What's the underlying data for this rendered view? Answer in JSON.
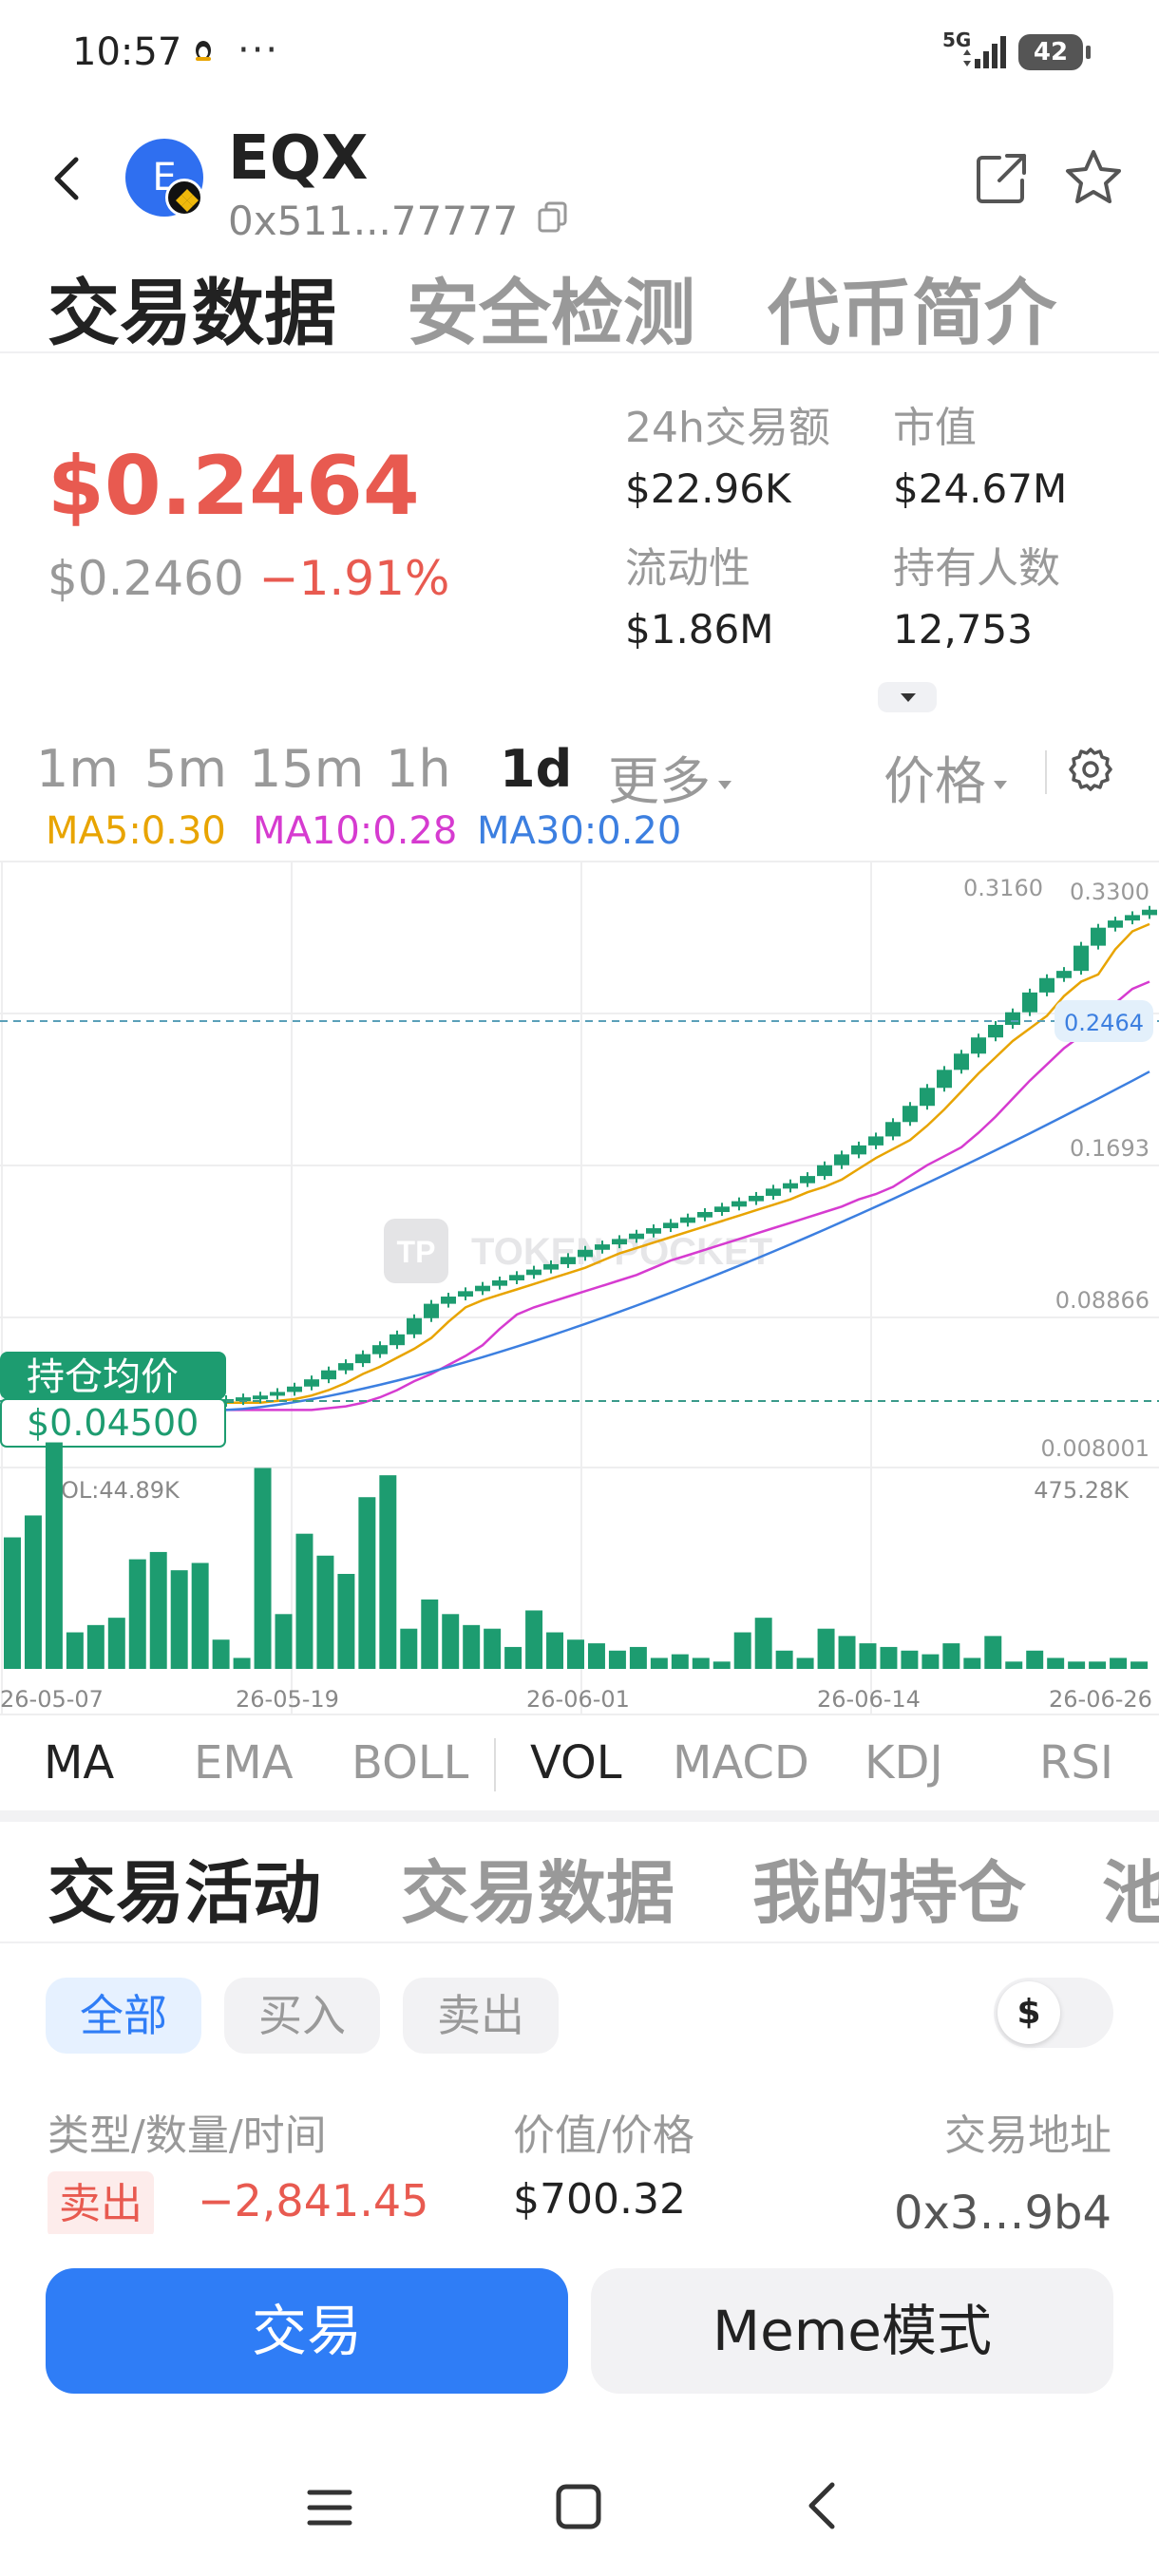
{
  "status_bar": {
    "time": "10:57",
    "more": "···",
    "network": "5G",
    "battery": "42"
  },
  "header": {
    "avatar_letter": "E",
    "symbol": "EQX",
    "address": "0x511...77777"
  },
  "top_tabs": [
    "交易数据",
    "安全检测",
    "代币简介"
  ],
  "price": {
    "main": "$0.2464",
    "secondary": "$0.2460",
    "change": "−1.91%"
  },
  "stats": {
    "volume_label": "24h交易额",
    "volume_value": "$22.96K",
    "mcap_label": "市值",
    "mcap_value": "$24.67M",
    "liquidity_label": "流动性",
    "liquidity_value": "$1.86M",
    "holders_label": "持有人数",
    "holders_value": "12,753"
  },
  "intervals": [
    "1m",
    "5m",
    "15m",
    "1h",
    "1d",
    "更多"
  ],
  "price_selector": "价格",
  "ma_legend": {
    "ma5": "MA5:0.30",
    "ma10": "MA10:0.28",
    "ma30": "MA30:0.20",
    "ma5_color": "#e8a400",
    "ma10_color": "#d63bd0",
    "ma30_color": "#3c7fe0"
  },
  "chart_data": {
    "type": "candlestick",
    "y_axis_labels": [
      "0.3160",
      "0.3300",
      "0.2464",
      "0.1693",
      "0.08866",
      "0.008001"
    ],
    "current_price_label": "0.2464",
    "avg_cost_label": "持仓均价",
    "avg_cost_value": "$0.04500",
    "watermark": "TOKEN POCKET",
    "watermark_logo": "TP",
    "volume_max_label": "475.28K",
    "volume_label": "VOL:44.89K",
    "x_labels": [
      "26-05-07",
      "26-05-19",
      "26-06-01",
      "26-06-14",
      "26-06-26"
    ],
    "ylim": [
      0.008001,
      0.33
    ],
    "candles": [
      {
        "o": 0.045,
        "c": 0.046
      },
      {
        "o": 0.046,
        "c": 0.047
      },
      {
        "o": 0.047,
        "c": 0.048
      },
      {
        "o": 0.048,
        "c": 0.05
      },
      {
        "o": 0.05,
        "c": 0.053
      },
      {
        "o": 0.053,
        "c": 0.057
      },
      {
        "o": 0.057,
        "c": 0.062
      },
      {
        "o": 0.062,
        "c": 0.066
      },
      {
        "o": 0.066,
        "c": 0.071
      },
      {
        "o": 0.071,
        "c": 0.076
      },
      {
        "o": 0.076,
        "c": 0.082
      },
      {
        "o": 0.082,
        "c": 0.091
      },
      {
        "o": 0.091,
        "c": 0.099
      },
      {
        "o": 0.099,
        "c": 0.103
      },
      {
        "o": 0.103,
        "c": 0.106
      },
      {
        "o": 0.106,
        "c": 0.109
      },
      {
        "o": 0.109,
        "c": 0.112
      },
      {
        "o": 0.112,
        "c": 0.115
      },
      {
        "o": 0.115,
        "c": 0.118
      },
      {
        "o": 0.118,
        "c": 0.121
      },
      {
        "o": 0.121,
        "c": 0.125
      },
      {
        "o": 0.125,
        "c": 0.129
      },
      {
        "o": 0.129,
        "c": 0.132
      },
      {
        "o": 0.132,
        "c": 0.135
      },
      {
        "o": 0.135,
        "c": 0.138
      },
      {
        "o": 0.138,
        "c": 0.141
      },
      {
        "o": 0.141,
        "c": 0.144
      },
      {
        "o": 0.144,
        "c": 0.147
      },
      {
        "o": 0.147,
        "c": 0.15
      },
      {
        "o": 0.15,
        "c": 0.153
      },
      {
        "o": 0.153,
        "c": 0.156
      },
      {
        "o": 0.156,
        "c": 0.159
      },
      {
        "o": 0.159,
        "c": 0.163
      },
      {
        "o": 0.163,
        "c": 0.166
      },
      {
        "o": 0.166,
        "c": 0.17
      },
      {
        "o": 0.17,
        "c": 0.176
      },
      {
        "o": 0.176,
        "c": 0.182
      },
      {
        "o": 0.182,
        "c": 0.187
      },
      {
        "o": 0.187,
        "c": 0.192
      },
      {
        "o": 0.192,
        "c": 0.2
      },
      {
        "o": 0.2,
        "c": 0.209
      },
      {
        "o": 0.209,
        "c": 0.219
      },
      {
        "o": 0.219,
        "c": 0.229
      },
      {
        "o": 0.229,
        "c": 0.238
      },
      {
        "o": 0.238,
        "c": 0.247
      },
      {
        "o": 0.247,
        "c": 0.254
      },
      {
        "o": 0.254,
        "c": 0.261
      },
      {
        "o": 0.261,
        "c": 0.272
      },
      {
        "o": 0.272,
        "c": 0.28
      },
      {
        "o": 0.28,
        "c": 0.284
      },
      {
        "o": 0.284,
        "c": 0.298
      },
      {
        "o": 0.298,
        "c": 0.308
      },
      {
        "o": 0.308,
        "c": 0.312
      },
      {
        "o": 0.312,
        "c": 0.315
      },
      {
        "o": 0.315,
        "c": 0.318
      }
    ],
    "volumes": [
      0.36,
      0.42,
      0.62,
      0.1,
      0.12,
      0.14,
      0.3,
      0.32,
      0.27,
      0.29,
      0.08,
      0.03,
      0.55,
      0.15,
      0.37,
      0.31,
      0.26,
      0.47,
      0.53,
      0.11,
      0.19,
      0.15,
      0.12,
      0.11,
      0.06,
      0.16,
      0.1,
      0.08,
      0.07,
      0.05,
      0.06,
      0.03,
      0.04,
      0.03,
      0.02,
      0.1,
      0.14,
      0.05,
      0.03,
      0.11,
      0.09,
      0.07,
      0.06,
      0.05,
      0.04,
      0.07,
      0.03,
      0.09,
      0.02,
      0.05,
      0.03,
      0.02,
      0.02,
      0.03,
      0.02
    ]
  },
  "indicators": [
    "MA",
    "EMA",
    "BOLL",
    "VOL",
    "MACD",
    "KDJ",
    "RSI"
  ],
  "activity_tabs": [
    "交易活动",
    "交易数据",
    "我的持仓",
    "池"
  ],
  "filters": [
    "全部",
    "买入",
    "卖出"
  ],
  "currency_symbol": "$",
  "columns": {
    "type": "类型/数量/时间",
    "value": "价值/价格",
    "address": "交易地址"
  },
  "trade_row": {
    "type": "卖出",
    "amount": "−2,841.45",
    "value": "$700.32",
    "address": "0x3…9b4"
  },
  "actions": {
    "trade": "交易",
    "meme": "Meme模式"
  }
}
